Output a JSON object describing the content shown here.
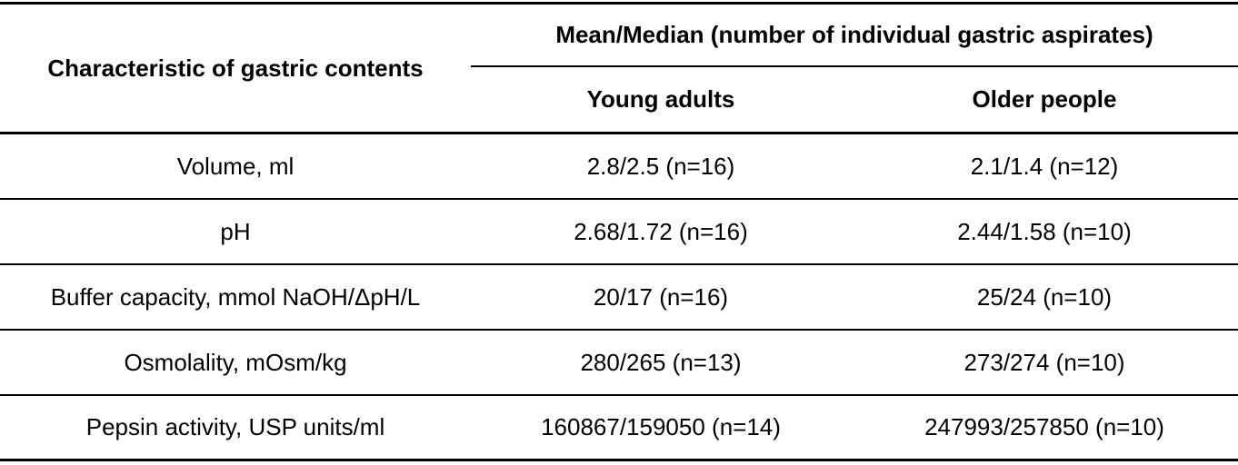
{
  "table": {
    "header": {
      "characteristic": "Characteristic of gastric contents",
      "group": "Mean/Median (number of individual gastric aspirates)",
      "young": "Young adults",
      "older": "Older people"
    },
    "rows": [
      {
        "characteristic": "Volume, ml",
        "young": "2.8/2.5 (n=16)",
        "older": "2.1/1.4 (n=12)"
      },
      {
        "characteristic": "pH",
        "young": "2.68/1.72 (n=16)",
        "older": "2.44/1.58 (n=10)"
      },
      {
        "characteristic": "Buffer capacity, mmol NaOH/ΔpH/L",
        "young": "20/17 (n=16)",
        "older": "25/24 (n=10)"
      },
      {
        "characteristic": "Osmolality, mOsm/kg",
        "young": "280/265 (n=13)",
        "older": "273/274 (n=10)"
      },
      {
        "characteristic": "Pepsin activity, USP units/ml",
        "young": "160867/159050 (n=14)",
        "older": "247993/257850 (n=10)"
      }
    ]
  }
}
